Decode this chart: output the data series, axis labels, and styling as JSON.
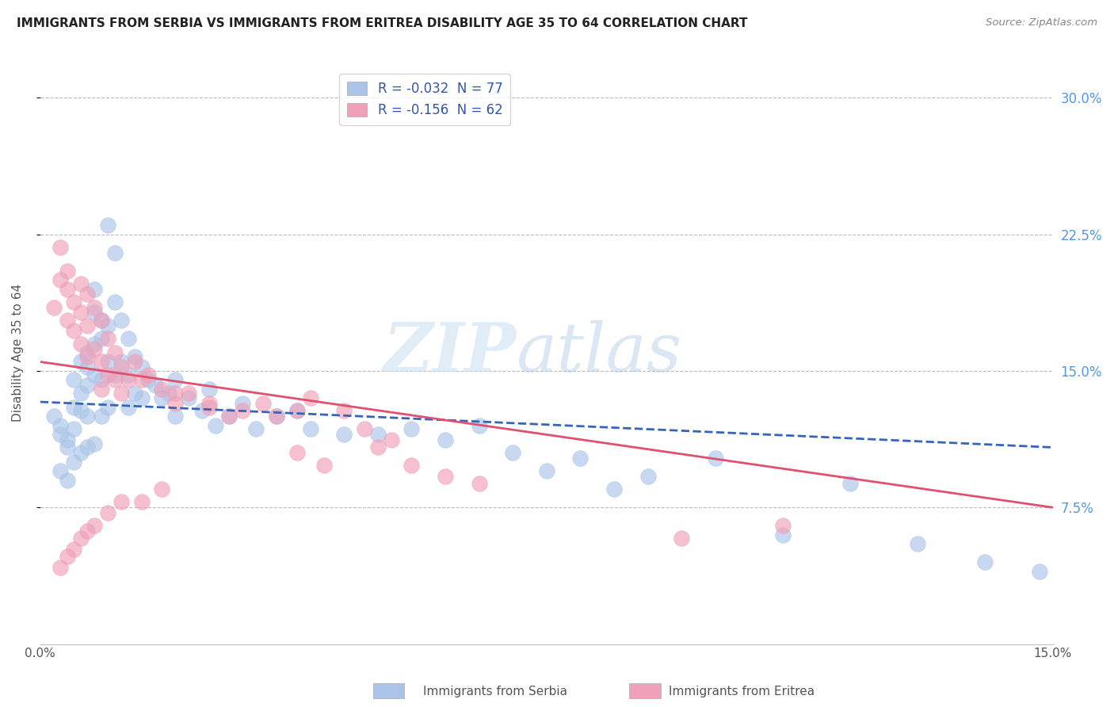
{
  "title": "IMMIGRANTS FROM SERBIA VS IMMIGRANTS FROM ERITREA DISABILITY AGE 35 TO 64 CORRELATION CHART",
  "source": "Source: ZipAtlas.com",
  "ylabel": "Disability Age 35 to 64",
  "ytick_labels": [
    "7.5%",
    "15.0%",
    "22.5%",
    "30.0%"
  ],
  "ytick_values": [
    0.075,
    0.15,
    0.225,
    0.3
  ],
  "xlim": [
    0.0,
    0.15
  ],
  "ylim": [
    0.0,
    0.32
  ],
  "legend_r1": "R = -0.032  N = 77",
  "legend_r2": "R = -0.156  N = 62",
  "serbia_color": "#aac4e8",
  "eritrea_color": "#f0a0b8",
  "serbia_line_color": "#3366bb",
  "eritrea_line_color": "#e05070",
  "watermark_zip": "ZIP",
  "watermark_atlas": "atlas",
  "serbia_scatter_x": [
    0.002,
    0.003,
    0.003,
    0.003,
    0.004,
    0.004,
    0.004,
    0.005,
    0.005,
    0.005,
    0.005,
    0.006,
    0.006,
    0.006,
    0.006,
    0.007,
    0.007,
    0.007,
    0.007,
    0.007,
    0.008,
    0.008,
    0.008,
    0.008,
    0.008,
    0.009,
    0.009,
    0.009,
    0.009,
    0.01,
    0.01,
    0.01,
    0.01,
    0.011,
    0.011,
    0.011,
    0.012,
    0.012,
    0.013,
    0.013,
    0.013,
    0.014,
    0.014,
    0.015,
    0.015,
    0.016,
    0.017,
    0.018,
    0.019,
    0.02,
    0.02,
    0.022,
    0.024,
    0.025,
    0.026,
    0.028,
    0.03,
    0.032,
    0.035,
    0.038,
    0.04,
    0.045,
    0.05,
    0.055,
    0.06,
    0.065,
    0.07,
    0.075,
    0.08,
    0.085,
    0.09,
    0.1,
    0.11,
    0.12,
    0.13,
    0.14,
    0.148
  ],
  "serbia_scatter_y": [
    0.125,
    0.12,
    0.115,
    0.095,
    0.112,
    0.108,
    0.09,
    0.145,
    0.13,
    0.118,
    0.1,
    0.155,
    0.138,
    0.128,
    0.105,
    0.16,
    0.152,
    0.142,
    0.125,
    0.108,
    0.195,
    0.182,
    0.165,
    0.148,
    0.11,
    0.178,
    0.168,
    0.145,
    0.125,
    0.23,
    0.175,
    0.155,
    0.13,
    0.215,
    0.188,
    0.148,
    0.178,
    0.155,
    0.168,
    0.148,
    0.13,
    0.158,
    0.138,
    0.152,
    0.135,
    0.145,
    0.142,
    0.135,
    0.138,
    0.145,
    0.125,
    0.135,
    0.128,
    0.14,
    0.12,
    0.125,
    0.132,
    0.118,
    0.125,
    0.128,
    0.118,
    0.115,
    0.115,
    0.118,
    0.112,
    0.12,
    0.105,
    0.095,
    0.102,
    0.085,
    0.092,
    0.102,
    0.06,
    0.088,
    0.055,
    0.045,
    0.04
  ],
  "eritrea_scatter_x": [
    0.002,
    0.003,
    0.003,
    0.004,
    0.004,
    0.004,
    0.005,
    0.005,
    0.006,
    0.006,
    0.006,
    0.007,
    0.007,
    0.007,
    0.008,
    0.008,
    0.009,
    0.009,
    0.009,
    0.01,
    0.01,
    0.011,
    0.011,
    0.012,
    0.012,
    0.013,
    0.014,
    0.015,
    0.016,
    0.018,
    0.02,
    0.022,
    0.025,
    0.028,
    0.03,
    0.033,
    0.035,
    0.038,
    0.04,
    0.045,
    0.05,
    0.055,
    0.06,
    0.065,
    0.048,
    0.052,
    0.038,
    0.042,
    0.02,
    0.025,
    0.018,
    0.015,
    0.012,
    0.01,
    0.008,
    0.006,
    0.005,
    0.004,
    0.003,
    0.007,
    0.11,
    0.095
  ],
  "eritrea_scatter_y": [
    0.185,
    0.218,
    0.2,
    0.205,
    0.195,
    0.178,
    0.188,
    0.172,
    0.198,
    0.182,
    0.165,
    0.192,
    0.175,
    0.158,
    0.185,
    0.162,
    0.178,
    0.155,
    0.14,
    0.168,
    0.148,
    0.16,
    0.145,
    0.152,
    0.138,
    0.145,
    0.155,
    0.145,
    0.148,
    0.14,
    0.132,
    0.138,
    0.13,
    0.125,
    0.128,
    0.132,
    0.125,
    0.128,
    0.135,
    0.128,
    0.108,
    0.098,
    0.092,
    0.088,
    0.118,
    0.112,
    0.105,
    0.098,
    0.138,
    0.132,
    0.085,
    0.078,
    0.078,
    0.072,
    0.065,
    0.058,
    0.052,
    0.048,
    0.042,
    0.062,
    0.065,
    0.058
  ]
}
